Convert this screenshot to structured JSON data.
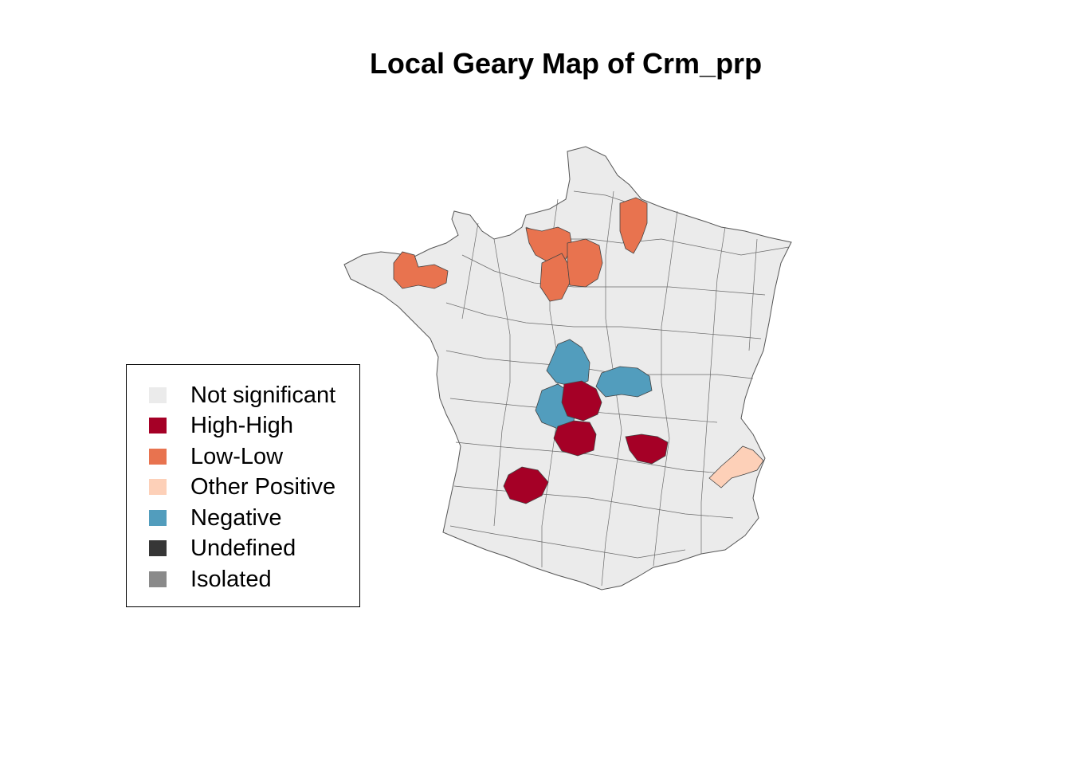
{
  "title": "Local Geary Map of Crm_prp",
  "colors": {
    "background": "#ffffff",
    "not_significant": "#ebebeb",
    "high_high": "#a50026",
    "low_low": "#e8734f",
    "other_positive": "#fdd0b8",
    "negative": "#529dbd",
    "undefined": "#363636",
    "isolated": "#8a8a8a",
    "border": "#444444"
  },
  "legend": {
    "items": [
      {
        "label": "Not significant",
        "color": "#ebebeb"
      },
      {
        "label": "High-High",
        "color": "#a50026"
      },
      {
        "label": "Low-Low",
        "color": "#e8734f"
      },
      {
        "label": "Other Positive",
        "color": "#fdd0b8"
      },
      {
        "label": "Negative",
        "color": "#529dbd"
      },
      {
        "label": "Undefined",
        "color": "#363636"
      },
      {
        "label": "Isolated",
        "color": "#8a8a8a"
      }
    ]
  }
}
